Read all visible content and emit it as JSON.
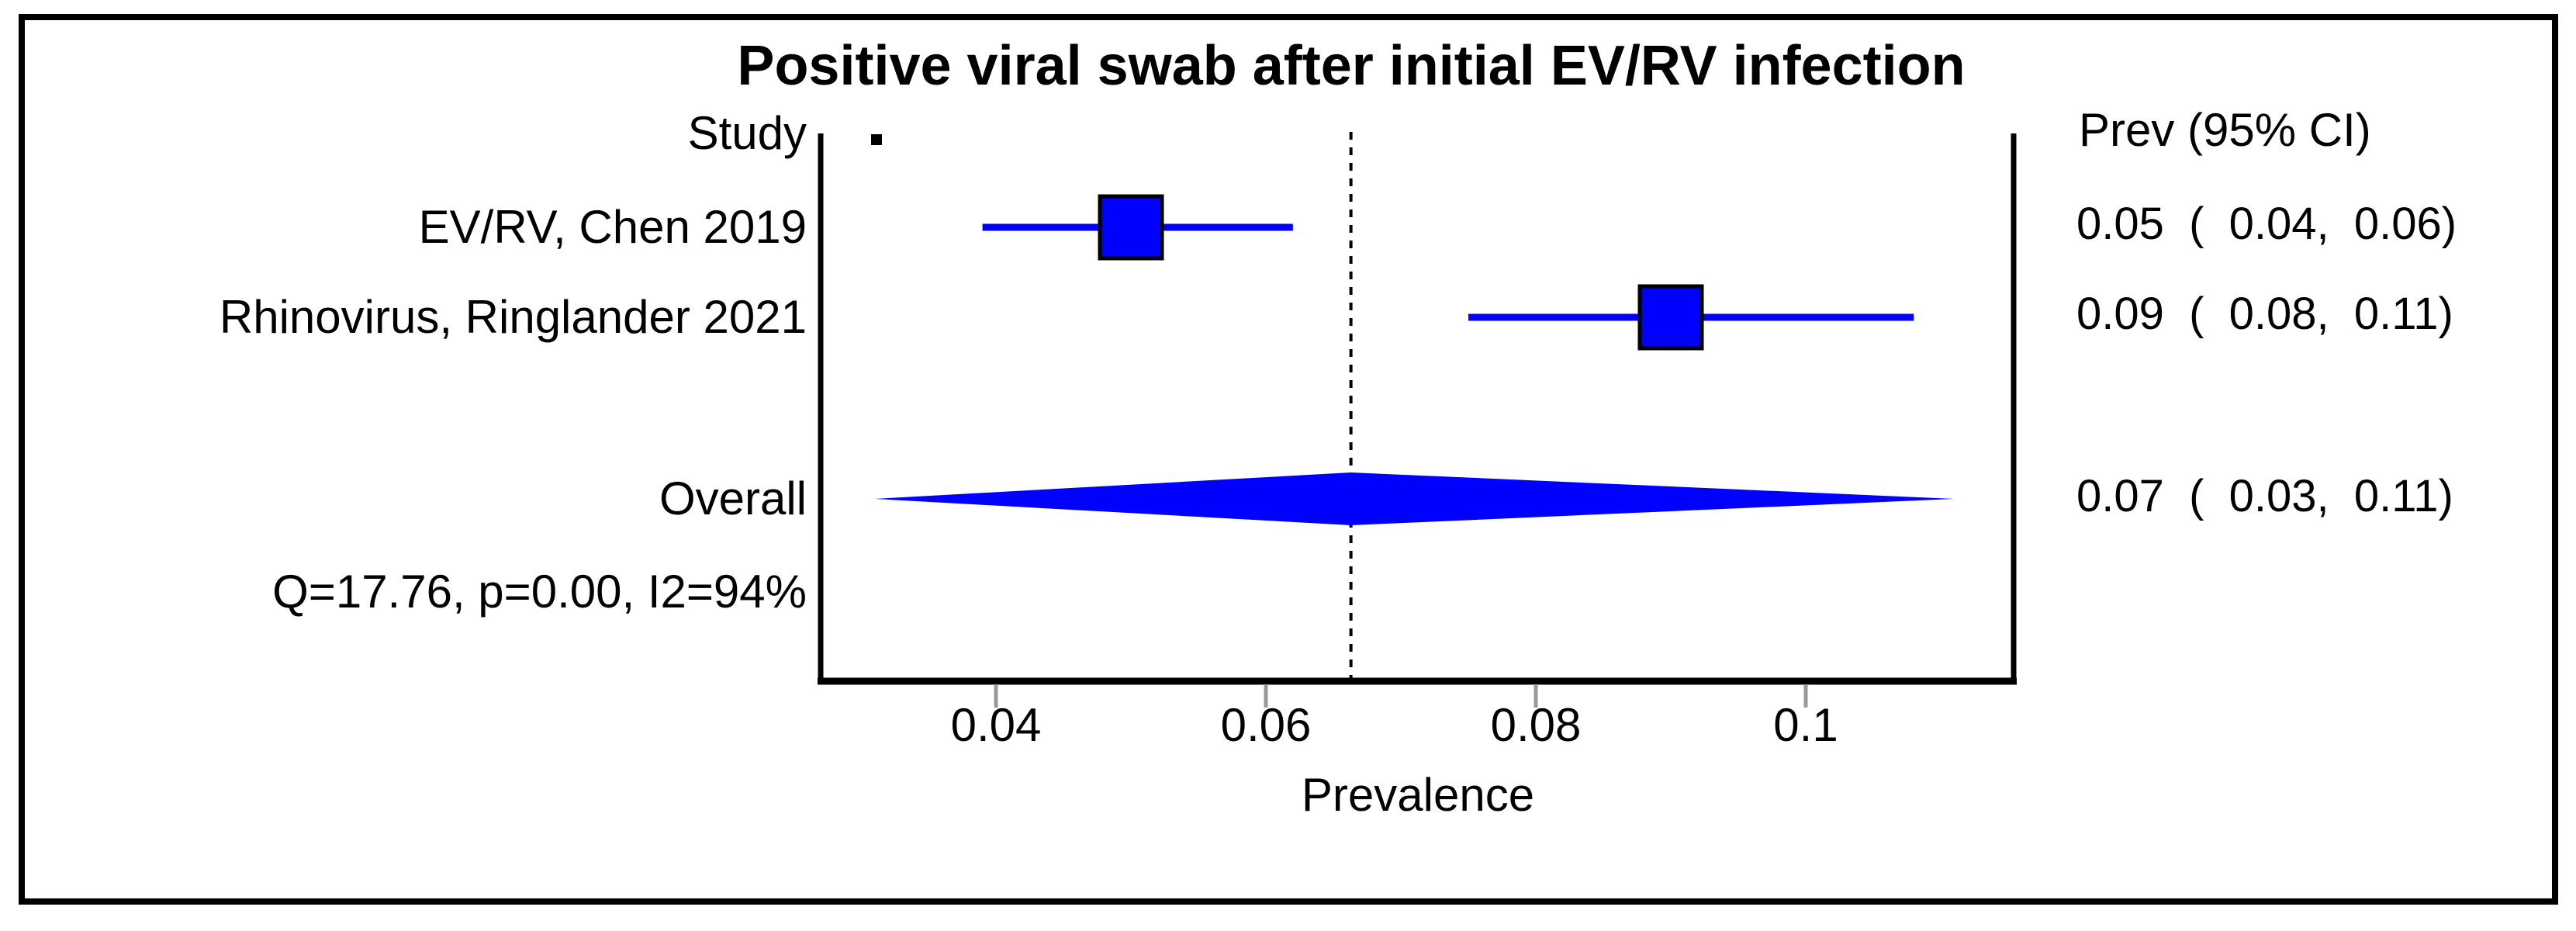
{
  "title": "Positive viral swab after initial EV/RV infection",
  "panel": {
    "study_header": "Study",
    "prev_header": "Prev (95% CI)"
  },
  "chart_data": {
    "type": "forest",
    "title": "Positive viral swab after initial EV/RV infection",
    "xlabel": "Prevalence",
    "x_ticks": [
      {
        "value": 0.04,
        "label": "0.04"
      },
      {
        "value": 0.06,
        "label": "0.06"
      },
      {
        "value": 0.08,
        "label": "0.08"
      },
      {
        "value": 0.1,
        "label": "0.1"
      }
    ],
    "xlim": [
      0.027,
      0.1155
    ],
    "reference_line_value": 0.0663,
    "marker_color": "#0000ff",
    "axis_color": "#000000",
    "tick_color": "#999999",
    "studies": [
      {
        "label": "EV/RV, Chen 2019",
        "prev": 0.05,
        "ci_lower": 0.04,
        "ci_upper": 0.06,
        "prev_display": "0.05  (  0.04,  0.06)",
        "line_start": 0.039,
        "line_end": 0.062
      },
      {
        "label": "Rhinovirus, Ringlander 2021",
        "prev": 0.09,
        "ci_lower": 0.08,
        "ci_upper": 0.11,
        "prev_display": "0.09  (  0.08,  0.11)",
        "line_start": 0.075,
        "line_end": 0.108
      }
    ],
    "overall": {
      "label": "Overall",
      "prev": 0.07,
      "ci_lower": 0.03,
      "ci_upper": 0.11,
      "prev_display": "0.07  (  0.03,  0.11)",
      "diamond_start": 0.031,
      "diamond_center": 0.0663,
      "diamond_end": 0.111
    },
    "heterogeneity": "Q=17.76, p=0.00, I2=94%"
  }
}
